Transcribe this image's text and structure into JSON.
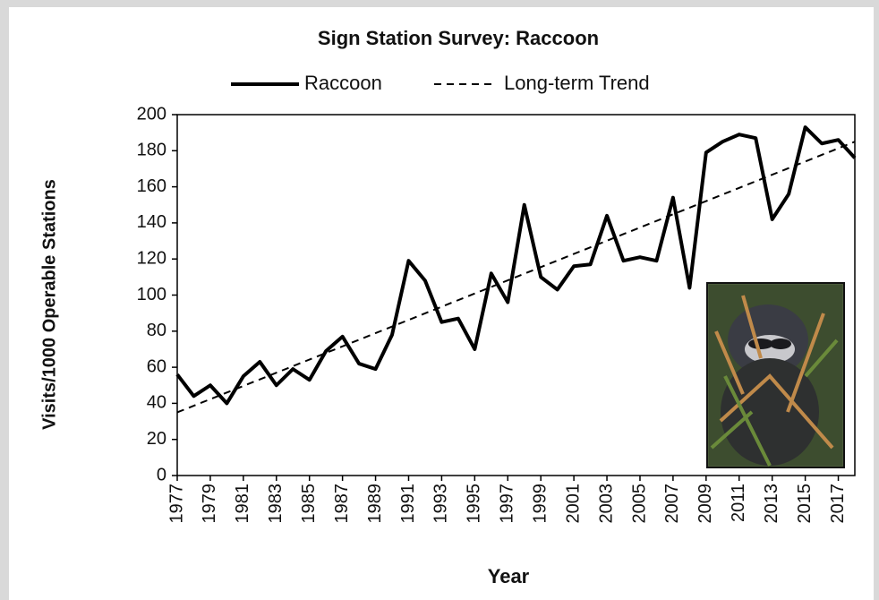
{
  "chart_data": {
    "type": "line",
    "title": "Sign Station Survey: Raccoon",
    "x_label": "Year",
    "y_label": "Visits/1000 Operable Stations",
    "xlim": [
      1977,
      2018
    ],
    "ylim": [
      0,
      200
    ],
    "xticks": [
      1977,
      1979,
      1981,
      1983,
      1985,
      1987,
      1989,
      1991,
      1993,
      1995,
      1997,
      1999,
      2001,
      2003,
      2005,
      2007,
      2009,
      2011,
      2013,
      2015,
      2017
    ],
    "yticks": [
      0,
      20,
      40,
      60,
      80,
      100,
      120,
      140,
      160,
      180,
      200
    ],
    "series": [
      {
        "name": "Raccoon",
        "color": "#000000",
        "dash": false,
        "x": [
          1977,
          1978,
          1979,
          1980,
          1981,
          1982,
          1983,
          1984,
          1985,
          1986,
          1987,
          1988,
          1989,
          1990,
          1991,
          1992,
          1993,
          1994,
          1995,
          1996,
          1997,
          1998,
          1999,
          2000,
          2001,
          2002,
          2003,
          2004,
          2005,
          2006,
          2007,
          2008,
          2009,
          2010,
          2011,
          2012,
          2013,
          2014,
          2015,
          2016,
          2017,
          2018
        ],
        "values": [
          56,
          44,
          50,
          40,
          55,
          63,
          50,
          59,
          53,
          69,
          77,
          62,
          59,
          78,
          119,
          108,
          85,
          87,
          70,
          112,
          96,
          150,
          110,
          103,
          116,
          117,
          144,
          119,
          121,
          119,
          154,
          104,
          179,
          185,
          189,
          187,
          142,
          156,
          193,
          184,
          186,
          176
        ]
      },
      {
        "name": "Long-term Trend",
        "color": "#000000",
        "dash": true,
        "x": [
          1977,
          2018
        ],
        "values": [
          35,
          185
        ]
      }
    ]
  }
}
